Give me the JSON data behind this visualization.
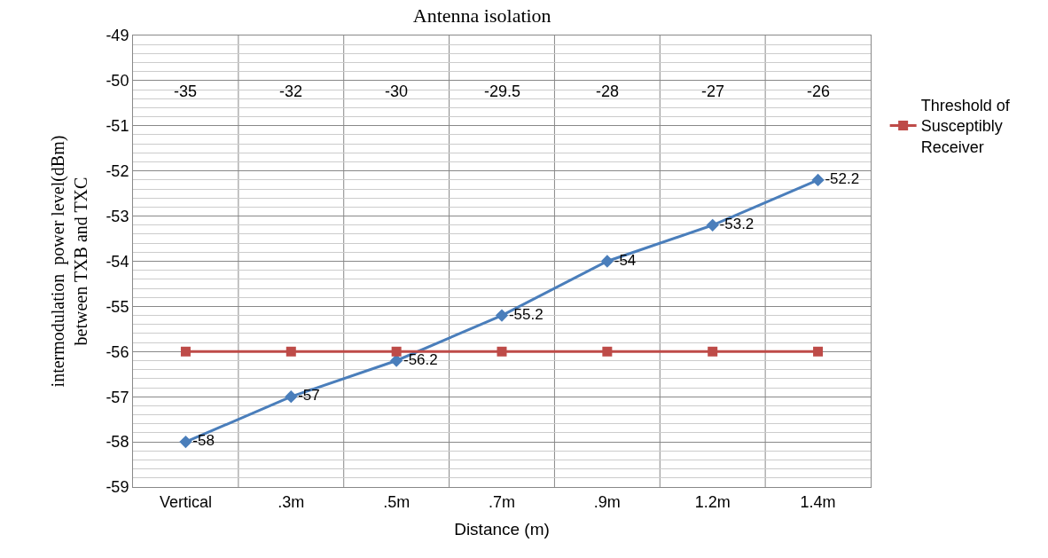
{
  "chart_data": {
    "type": "line",
    "title": "Antenna isolation",
    "xlabel": "Distance (m)",
    "ylabel": "intermodulation  power level(dBm)\nbetween TXB and TXC",
    "categories": [
      "Vertical",
      ".3m",
      ".5m",
      ".7m",
      ".9m",
      "1.2m",
      "1.4m"
    ],
    "series": [
      {
        "color": "#4a7ebb",
        "marker": "diamond",
        "values": [
          -58,
          -57,
          -56.2,
          -55.2,
          -54,
          -53.2,
          -52.2
        ],
        "value_labels": [
          "-58",
          "-57",
          "-56.2",
          "-55.2",
          "-54",
          "-53.2",
          "-52.2"
        ]
      },
      {
        "name": "Threshold of\nSusceptibly\nReceiver",
        "color": "#be4b48",
        "marker": "square",
        "values": [
          -56,
          -56,
          -56,
          -56,
          -56,
          -56,
          -56
        ]
      }
    ],
    "ylim": [
      -59,
      -49
    ],
    "yticks": [
      -59,
      -58,
      -57,
      -56,
      -55,
      -54,
      -53,
      -52,
      -51,
      -50,
      -49
    ],
    "grid": true,
    "legend": "right",
    "line_style": "solid",
    "annotations": [
      "-35",
      "-32",
      "-30",
      "-29.5",
      "-28",
      "-27",
      "-26"
    ]
  }
}
